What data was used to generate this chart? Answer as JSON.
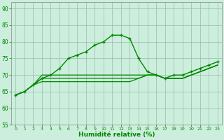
{
  "x": [
    0,
    1,
    2,
    3,
    4,
    5,
    6,
    7,
    8,
    9,
    10,
    11,
    12,
    13,
    14,
    15,
    16,
    17,
    18,
    19,
    20,
    21,
    22,
    23
  ],
  "line1": [
    64,
    65,
    67,
    69,
    70,
    72,
    75,
    76,
    77,
    79,
    80,
    82,
    82,
    81,
    75,
    71,
    70,
    69,
    70,
    70,
    71,
    72,
    73,
    74
  ],
  "line2": [
    64,
    65,
    67,
    68,
    68,
    68,
    68,
    68,
    68,
    68,
    68,
    68,
    68,
    68,
    69,
    70,
    70,
    69,
    69,
    69,
    70,
    71,
    72,
    73
  ],
  "line3": [
    64,
    65,
    67,
    70,
    70,
    70,
    70,
    70,
    70,
    70,
    70,
    70,
    70,
    70,
    70,
    70,
    70,
    69,
    69,
    69,
    70,
    71,
    72,
    73
  ],
  "line4": [
    64,
    65,
    67,
    69,
    69,
    69,
    69,
    69,
    69,
    69,
    69,
    69,
    69,
    69,
    69,
    70,
    70,
    69,
    69,
    69,
    70,
    71,
    72,
    73
  ],
  "line_color": "#008800",
  "bg_color": "#cceedd",
  "grid_color": "#99bbaa",
  "xlabel": "Humidité relative (%)",
  "ylim": [
    55,
    92
  ],
  "yticks": [
    55,
    60,
    65,
    70,
    75,
    80,
    85,
    90
  ],
  "xlim": [
    -0.5,
    23.5
  ]
}
